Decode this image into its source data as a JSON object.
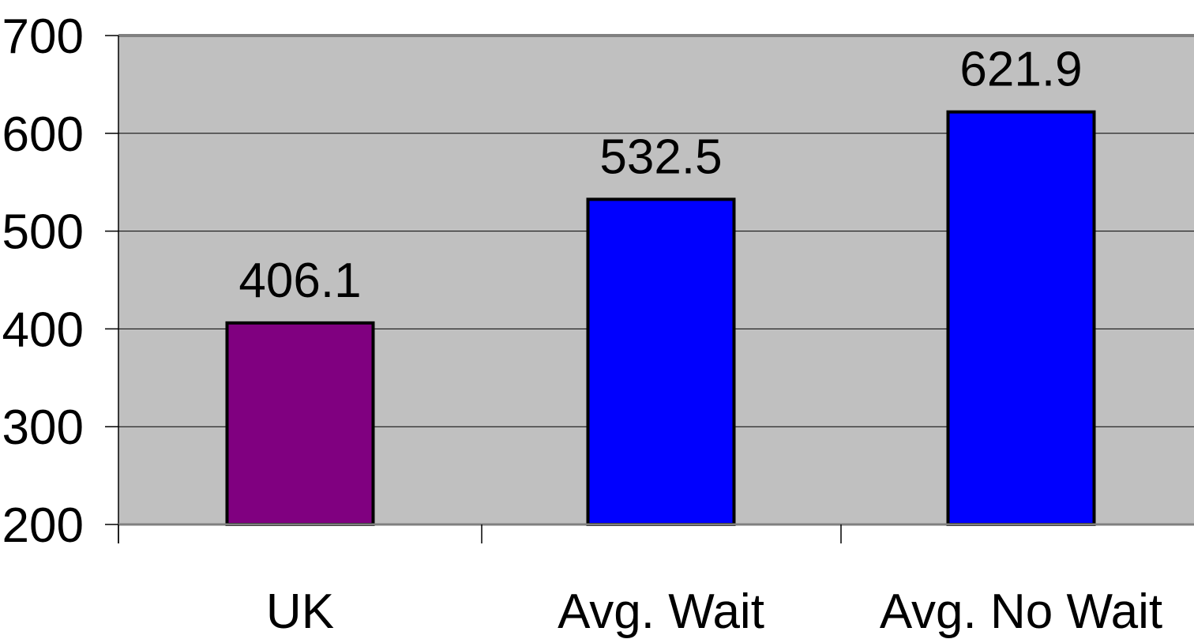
{
  "chart_data": {
    "type": "bar",
    "categories": [
      "UK",
      "Avg. Wait",
      "Avg. No Wait"
    ],
    "values": [
      406.1,
      532.5,
      621.9
    ],
    "data_labels": [
      "406.1",
      "532.5",
      "621.9"
    ],
    "bar_colors": [
      "#800080",
      "#0000ff",
      "#0000ff"
    ],
    "ylim": [
      200,
      700
    ],
    "yticks": [
      200,
      300,
      400,
      500,
      600,
      700
    ],
    "ytick_labels": [
      "200",
      "300",
      "400",
      "500",
      "600",
      "700"
    ],
    "grid": true,
    "plot_background": "#c0c0c0",
    "title": "",
    "xlabel": "",
    "ylabel": ""
  }
}
